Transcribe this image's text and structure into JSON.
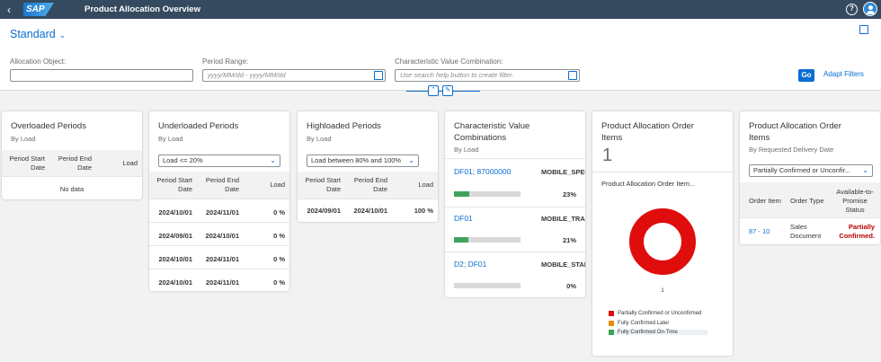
{
  "shell": {
    "title": "Product Allocation Overview",
    "logo": "SAP",
    "back_icon": "chevron-left-icon",
    "help_icon": "help-icon",
    "user_icon": "user-icon"
  },
  "header": {
    "variant": "Standard",
    "filters": [
      {
        "label": "Allocation Object:",
        "value": "",
        "placeholder": ""
      },
      {
        "label": "Period Range:",
        "value": "",
        "placeholder": "yyyy/MM/dd - yyyy/MM/dd"
      },
      {
        "label": "Characteristic Value Combination:",
        "value": "",
        "placeholder": "Use search help button to create filter."
      }
    ],
    "go": "Go",
    "adapt": "Adapt Filters"
  },
  "cards": {
    "overloaded": {
      "title": "Overloaded Periods",
      "subtitle": "By Load",
      "columns": [
        "Period Start Date",
        "Period End Date",
        "Load"
      ],
      "nodata": "No data"
    },
    "underloaded": {
      "title": "Underloaded Periods",
      "subtitle": "By Load",
      "select": "Load <= 20%",
      "columns": [
        "Period Start Date",
        "Period End Date",
        "Load"
      ],
      "rows": [
        [
          "2024/10/01",
          "2024/11/01",
          "0 %"
        ],
        [
          "2024/09/01",
          "2024/10/01",
          "0 %"
        ],
        [
          "2024/10/01",
          "2024/11/01",
          "0 %"
        ],
        [
          "2024/10/01",
          "2024/11/01",
          "0 %"
        ]
      ]
    },
    "highloaded": {
      "title": "Highloaded Periods",
      "subtitle": "By Load",
      "select": "Load between 80% and 100%",
      "columns": [
        "Period Start Date",
        "Period End Date",
        "Load"
      ],
      "rows": [
        [
          "2024/09/01",
          "2024/10/01",
          "100 %"
        ]
      ]
    },
    "cvc": {
      "title": "Characteristic Value Combinations",
      "subtitle": "By Load",
      "items": [
        {
          "link": "DF01; 87000000",
          "value": "MOBILE_SPEC",
          "pct": "23%",
          "fill": 0.23
        },
        {
          "link": "DF01",
          "value": "MOBILE_TRA",
          "pct": "21%",
          "fill": 0.21
        },
        {
          "link": "D2; DF01",
          "value": "MOBILE_STAI",
          "pct": "0%",
          "fill": 0
        }
      ]
    },
    "order_items": {
      "title": "Product Allocation Order Items",
      "count": "1",
      "chart_title": "Product Allocation Order Item...",
      "donut_label": "1",
      "legend": [
        {
          "label": "Partially Confirmed or Unconfirmed",
          "color": "#e00d0d"
        },
        {
          "label": "Fully Confirmed Later",
          "color": "#e78c07"
        },
        {
          "label": "Fully Confirmed On-Time",
          "color": "#3fa45b"
        }
      ]
    },
    "order_items2": {
      "title": "Product Allocation Order Items",
      "subtitle": "By Requested Delivery Date",
      "select": "Partially Confirmed or Unconfir...",
      "columns": [
        "Order Item",
        "Order Type",
        "Available-to-Promise Status"
      ],
      "rows": [
        {
          "item": "87 - 10",
          "type": "Sales Document",
          "status": "Partially Confirmed."
        }
      ]
    }
  },
  "chart_data": {
    "type": "pie",
    "title": "Product Allocation Order Item...",
    "categories": [
      "Partially Confirmed or Unconfirmed",
      "Fully Confirmed Later",
      "Fully Confirmed On-Time"
    ],
    "values": [
      1,
      0,
      0
    ],
    "colors": [
      "#e00d0d",
      "#e78c07",
      "#3fa45b"
    ]
  }
}
